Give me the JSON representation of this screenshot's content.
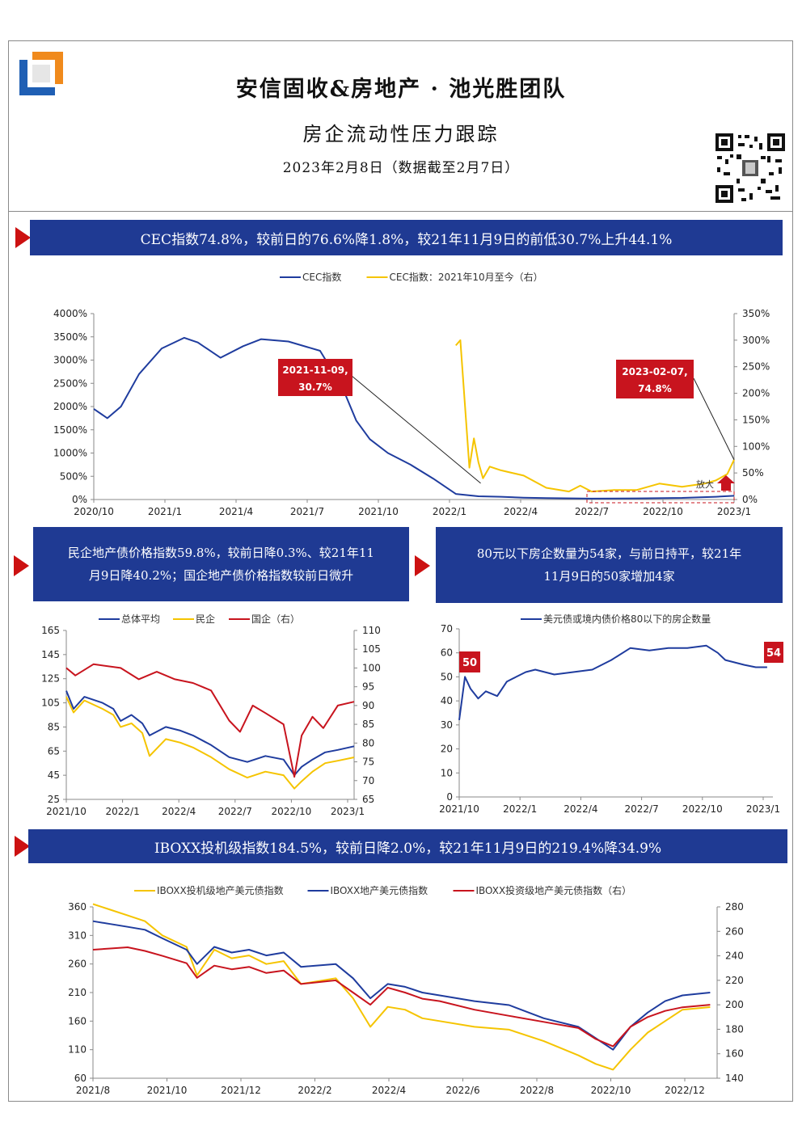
{
  "header": {
    "title": "安信固收&房地产 · 池光胜团队",
    "subtitle": "房企流动性压力跟踪",
    "date": "2023年2月8日（数据截至2月7日）"
  },
  "colors": {
    "navy": "#1f3a93",
    "blue_line": "#1f3c9e",
    "yellow_line": "#f5c400",
    "red_line": "#c8141e",
    "red_arrow": "#cc1111"
  },
  "banners": {
    "cec": "CEC指数74.8%，较前日的76.6%降1.8%，较21年11月9日的前低30.7%上升44.1%",
    "bond_price_line1": "民企地产债价格指数59.8%，较前日降0.3%、较21年11",
    "bond_price_line2": "月9日降40.2%；国企地产债价格指数较前日微升",
    "below80_line1": "80元以下房企数量为54家，与前日持平，较21年",
    "below80_line2": "11月9日的50家增加4家",
    "iboxx": "IBOXX投机级指数184.5%，较前日降2.0%，较21年11月9日的219.4%降34.9%"
  },
  "chart_data": [
    {
      "id": "cec",
      "type": "line",
      "legend": [
        "CEC指数",
        "CEC指数：2021年10月至今（右）"
      ],
      "y_ticks": [
        "4000%",
        "3500%",
        "3000%",
        "2500%",
        "2000%",
        "1500%",
        "1000%",
        "500%",
        "0%"
      ],
      "y2_ticks": [
        "350%",
        "300%",
        "250%",
        "200%",
        "150%",
        "100%",
        "50%",
        "0%"
      ],
      "x_ticks": [
        "2020/10",
        "2021/1",
        "2021/4",
        "2021/7",
        "2021/10",
        "2022/1",
        "2022/4",
        "2022/7",
        "2022/10",
        "2023/1"
      ],
      "ylim": [
        0,
        4000
      ],
      "y2lim": [
        0,
        350
      ],
      "xlim": [
        0,
        28.3
      ],
      "series": [
        {
          "name": "CEC指数",
          "axis": "left",
          "x": [
            0,
            0.6,
            1.2,
            2,
            3,
            4,
            4.6,
            5.6,
            6.6,
            7.4,
            8.6,
            10,
            11,
            11.6,
            12.2,
            13,
            14,
            15,
            16,
            17,
            18,
            19,
            20,
            22,
            24,
            26,
            27.5,
            28.3
          ],
          "values": [
            1950,
            1750,
            2000,
            2700,
            3250,
            3480,
            3380,
            3050,
            3300,
            3450,
            3400,
            3200,
            2400,
            1700,
            1300,
            1000,
            750,
            450,
            120,
            70,
            60,
            40,
            30,
            20,
            25,
            35,
            60,
            80
          ]
        },
        {
          "name": "CEC指数：2021年10月至今（右）",
          "axis": "right",
          "x": [
            16.0,
            16.2,
            16.4,
            16.6,
            16.8,
            17.0,
            17.2,
            17.5,
            18,
            19,
            20,
            21,
            21.5,
            22,
            23,
            24,
            25,
            26,
            26.5,
            27,
            27.5,
            28.0,
            28.3
          ],
          "values": [
            290,
            300,
            180,
            60,
            115,
            70,
            40,
            62,
            55,
            45,
            22,
            15,
            26,
            15,
            18,
            18,
            30,
            24,
            27,
            30,
            36,
            48,
            74.8
          ]
        }
      ],
      "annotations": [
        {
          "label": "2021-11-09,",
          "value": "30.7%"
        },
        {
          "label": "2023-02-07,",
          "value": "74.8%"
        },
        {
          "label": "放大"
        }
      ]
    },
    {
      "id": "bond_price",
      "type": "line",
      "legend": [
        "总体平均",
        "民企",
        "国企（右）"
      ],
      "y_ticks": [
        "165",
        "145",
        "125",
        "105",
        "85",
        "65",
        "45",
        "25"
      ],
      "y2_ticks": [
        "110",
        "105",
        "100",
        "95",
        "90",
        "85",
        "80",
        "75",
        "70",
        "65"
      ],
      "x_ticks": [
        "2021/10",
        "2022/1",
        "2022/4",
        "2022/7",
        "2022/10",
        "2023/1"
      ],
      "ylim": [
        25,
        165
      ],
      "y2lim": [
        65,
        110
      ],
      "xlim": [
        0,
        15.9
      ],
      "series": [
        {
          "name": "总体平均",
          "axis": "left",
          "x": [
            0,
            0.4,
            1,
            2,
            2.6,
            3,
            3.6,
            4.2,
            4.6,
            5.5,
            6.3,
            7,
            8,
            9,
            10,
            11,
            12,
            12.6,
            13,
            13.6,
            14.3,
            15,
            15.9
          ],
          "values": [
            115,
            100,
            110,
            105,
            100,
            90,
            95,
            88,
            78,
            85,
            82,
            78,
            70,
            60,
            56,
            61,
            58,
            45,
            52,
            58,
            64,
            66,
            69
          ]
        },
        {
          "name": "民企",
          "axis": "left",
          "x": [
            0,
            0.4,
            1,
            2,
            2.6,
            3,
            3.6,
            4.2,
            4.6,
            5.5,
            6.3,
            7,
            8,
            9,
            10,
            11,
            12,
            12.6,
            13,
            13.6,
            14.3,
            15,
            15.9
          ],
          "values": [
            110,
            97,
            107,
            100,
            95,
            85,
            88,
            80,
            61,
            75,
            72,
            68,
            60,
            50,
            43,
            48,
            45,
            34,
            40,
            48,
            55,
            57,
            59.8
          ]
        },
        {
          "name": "国企（右）",
          "axis": "right",
          "x": [
            0,
            0.5,
            1.5,
            3,
            4,
            5,
            6,
            7,
            8,
            9,
            9.6,
            10.3,
            11,
            12,
            12.6,
            13,
            13.6,
            14.2,
            15,
            15.9
          ],
          "values": [
            100,
            98,
            101,
            100,
            97,
            99,
            97,
            96,
            94,
            86,
            83,
            90,
            88,
            85,
            71,
            82,
            87,
            84,
            90,
            91
          ]
        }
      ]
    },
    {
      "id": "below80",
      "type": "line",
      "legend": [
        "美元债或境内债价格80以下的房企数量"
      ],
      "y_ticks": [
        "70",
        "60",
        "50",
        "40",
        "30",
        "20",
        "10",
        "0"
      ],
      "x_ticks": [
        "2021/10",
        "2022/1",
        "2022/4",
        "2022/7",
        "2022/10",
        "2023/1"
      ],
      "ylim": [
        0,
        70
      ],
      "xlim": [
        0,
        16.5
      ],
      "series": [
        {
          "name": "美元债或境内债价格80以下的房企数量",
          "x": [
            0,
            0.3,
            0.6,
            1,
            1.4,
            2,
            2.5,
            3,
            3.5,
            4,
            5,
            6,
            7,
            8,
            9,
            10,
            11,
            12,
            13,
            13.6,
            14,
            14.5,
            15,
            15.6,
            16.2
          ],
          "values": [
            32,
            50,
            45,
            41,
            44,
            42,
            48,
            50,
            52,
            53,
            51,
            52,
            53,
            57,
            62,
            61,
            62,
            62,
            63,
            60,
            57,
            56,
            55,
            54,
            54
          ]
        }
      ],
      "annotations": [
        {
          "value": "50"
        },
        {
          "value": "54"
        }
      ]
    },
    {
      "id": "iboxx",
      "type": "line",
      "legend": [
        "IBOXX投机级地产美元债指数",
        "IBOXX地产美元债指数",
        "IBOXX投资级地产美元债指数（右）"
      ],
      "y_ticks": [
        "360",
        "310",
        "260",
        "210",
        "160",
        "110",
        "60"
      ],
      "y2_ticks": [
        "280",
        "260",
        "240",
        "220",
        "200",
        "180",
        "160",
        "140"
      ],
      "x_ticks": [
        "2021/8",
        "2021/10",
        "2021/12",
        "2022/2",
        "2022/4",
        "2022/6",
        "2022/8",
        "2022/10",
        "2022/12"
      ],
      "ylim": [
        60,
        360
      ],
      "y2lim": [
        140,
        280
      ],
      "xlim": [
        0,
        18
      ],
      "series": [
        {
          "name": "IBOXX投机级地产美元债指数",
          "axis": "left",
          "x": [
            0,
            0.5,
            1,
            1.5,
            2,
            2.7,
            3,
            3.5,
            4,
            4.5,
            5,
            5.5,
            6,
            7,
            7.5,
            8,
            8.5,
            9,
            9.5,
            10,
            11,
            12,
            13,
            14,
            14.5,
            15,
            15.5,
            16,
            16.5,
            17,
            17.8
          ],
          "values": [
            365,
            355,
            345,
            335,
            310,
            290,
            240,
            285,
            270,
            275,
            260,
            265,
            225,
            235,
            200,
            150,
            185,
            180,
            165,
            160,
            150,
            145,
            125,
            100,
            85,
            75,
            110,
            140,
            160,
            180,
            184.5
          ]
        },
        {
          "name": "IBOXX地产美元债指数",
          "axis": "left",
          "x": [
            0,
            0.5,
            1,
            1.5,
            2,
            2.7,
            3,
            3.5,
            4,
            4.5,
            5,
            5.5,
            6,
            7,
            7.5,
            8,
            8.5,
            9,
            9.5,
            10,
            11,
            12,
            13,
            14,
            14.5,
            15,
            15.5,
            16,
            16.5,
            17,
            17.8
          ],
          "values": [
            335,
            330,
            325,
            320,
            305,
            285,
            260,
            290,
            280,
            285,
            275,
            280,
            255,
            260,
            235,
            200,
            225,
            220,
            210,
            205,
            195,
            188,
            165,
            150,
            130,
            110,
            150,
            175,
            195,
            205,
            210
          ]
        },
        {
          "name": "IBOXX投资级地产美元债指数（右）",
          "axis": "right",
          "x": [
            0,
            0.5,
            1,
            1.5,
            2,
            2.7,
            3,
            3.5,
            4,
            4.5,
            5,
            5.5,
            6,
            7,
            7.5,
            8,
            8.5,
            9,
            9.5,
            10,
            11,
            12,
            13,
            14,
            14.5,
            15,
            15.5,
            16,
            16.5,
            17,
            17.8
          ],
          "values": [
            245,
            246,
            247,
            244,
            240,
            234,
            222,
            232,
            229,
            231,
            226,
            228,
            217,
            220,
            210,
            200,
            214,
            210,
            205,
            203,
            196,
            191,
            186,
            181,
            172,
            166,
            182,
            190,
            195,
            198,
            200
          ]
        }
      ]
    }
  ]
}
